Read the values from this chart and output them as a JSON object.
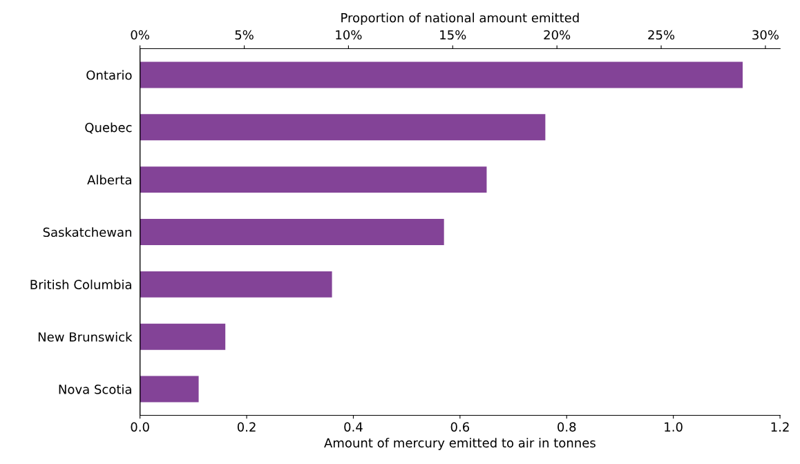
{
  "chart_data": {
    "type": "bar",
    "orientation": "horizontal",
    "categories": [
      "Ontario",
      "Quebec",
      "Alberta",
      "Saskatchewan",
      "British Columbia",
      "New Brunswick",
      "Nova Scotia"
    ],
    "values": [
      1.13,
      0.76,
      0.65,
      0.57,
      0.36,
      0.16,
      0.11
    ],
    "color": "#834397",
    "xlabel": "Amount of mercury emitted to air in tonnes",
    "x2label": "Proportion of national amount emitted",
    "xlim": [
      0,
      1.2
    ],
    "xticks": [
      {
        "value": 0,
        "label": "0.0"
      },
      0.2,
      0.4,
      0.6,
      0.8,
      {
        "value": 1,
        "label": "1.0"
      },
      1.2
    ],
    "x2lim": [
      0,
      30.7
    ],
    "x2ticks": [
      {
        "value": 0,
        "label": "0%"
      },
      {
        "value": 5,
        "label": "5%"
      },
      {
        "value": 10,
        "label": "10%"
      },
      {
        "value": 15,
        "label": "15%"
      },
      {
        "value": 20,
        "label": "20%"
      },
      {
        "value": 25,
        "label": "25%"
      },
      {
        "value": 30,
        "label": "30%"
      }
    ],
    "grid": false,
    "legend": false
  }
}
